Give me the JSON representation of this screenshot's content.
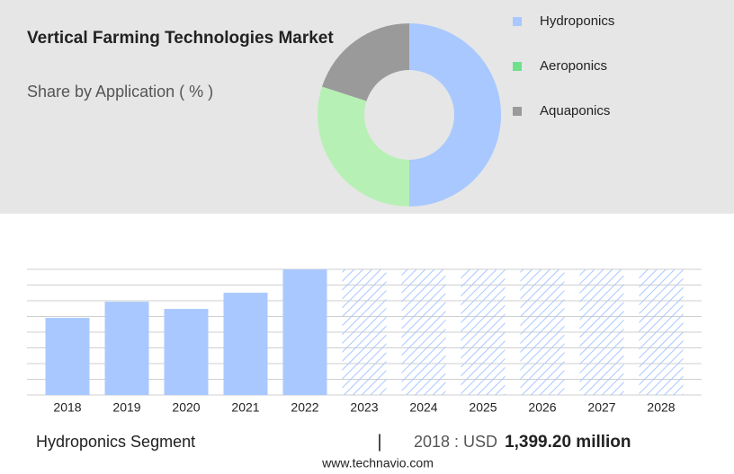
{
  "chart_data": [
    {
      "type": "donut",
      "title": "Vertical Farming Technologies Market",
      "subtitle": "Share by Application ( % )",
      "categories": [
        "Hydroponics",
        "Aeroponics",
        "Aquaponics"
      ],
      "values": [
        50,
        30,
        20
      ],
      "colors": [
        "#a8c8ff",
        "#b7f0b5",
        "#9a9a9a"
      ],
      "legend_colors": [
        "#a8c8ff",
        "#6ee08c",
        "#9a9a9a"
      ]
    },
    {
      "type": "bar",
      "categories": [
        "2018",
        "2019",
        "2020",
        "2021",
        "2022",
        "2023",
        "2024",
        "2025",
        "2026",
        "2027",
        "2028"
      ],
      "values": [
        1399.2,
        1692,
        1562,
        1855,
        2278,
        null,
        null,
        null,
        null,
        null,
        null
      ],
      "color": "#a8c8ff",
      "ylim": [
        0,
        2280
      ],
      "yticks": [
        0,
        285,
        570,
        855,
        1140,
        1425,
        1710,
        1995,
        2280
      ],
      "grid": true
    }
  ],
  "footer": {
    "segment": "Hydroponics Segment",
    "separator": "|",
    "year_text": "2018 : USD",
    "amount": "1,399.20 million",
    "source": "www.technavio.com"
  }
}
